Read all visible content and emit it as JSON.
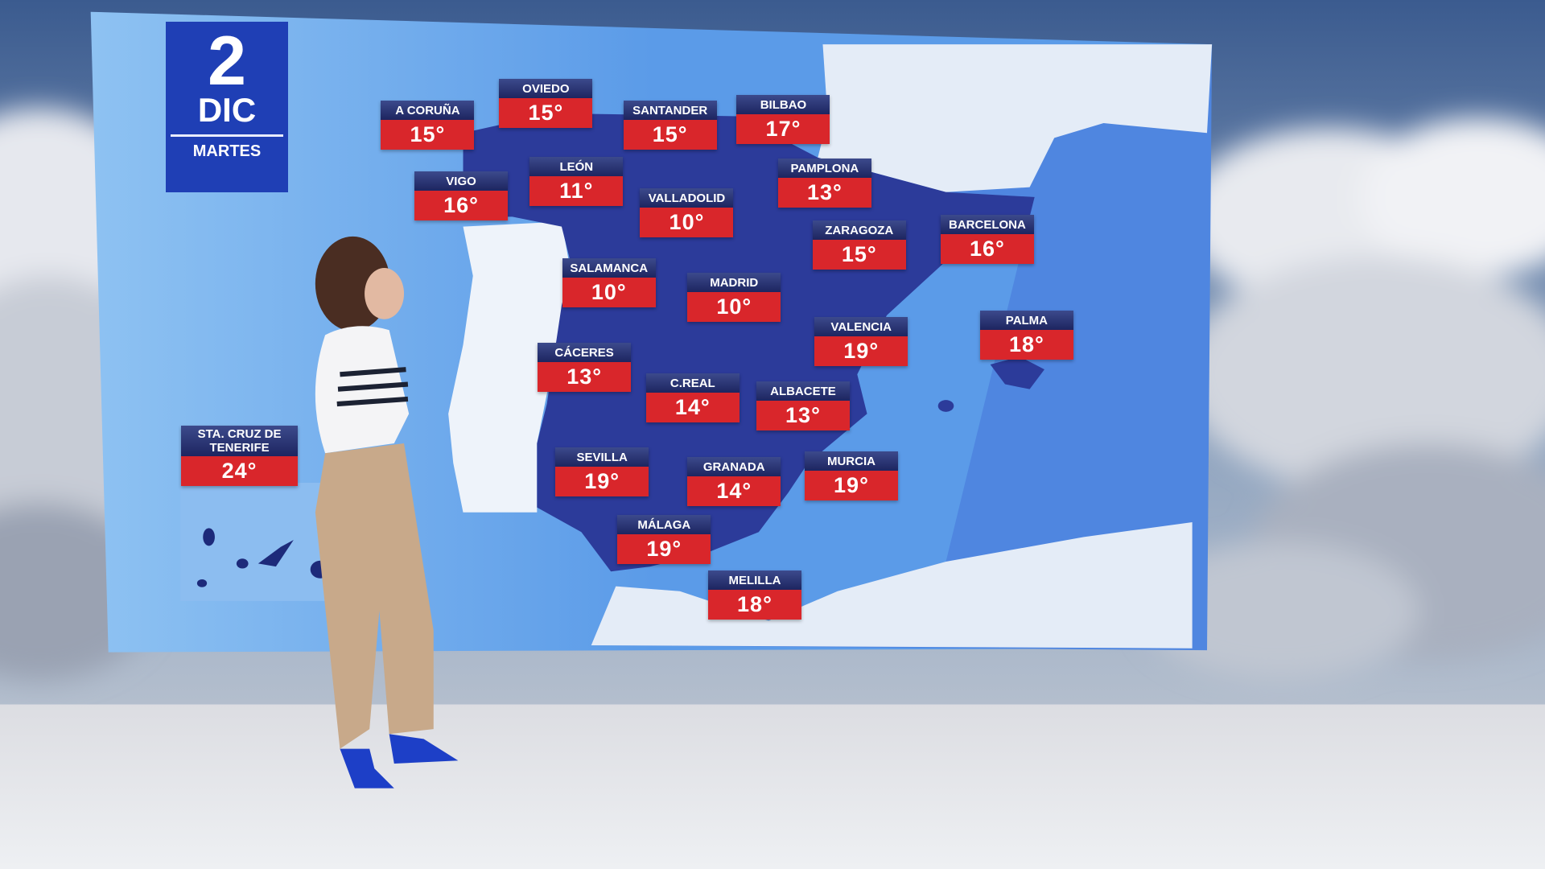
{
  "date": {
    "day": "2",
    "month": "DIC",
    "weekday": "MARTES"
  },
  "cities": [
    {
      "name": "A CORUÑA",
      "temp": "15°"
    },
    {
      "name": "OVIEDO",
      "temp": "15°"
    },
    {
      "name": "SANTANDER",
      "temp": "15°"
    },
    {
      "name": "BILBAO",
      "temp": "17°"
    },
    {
      "name": "VIGO",
      "temp": "16°"
    },
    {
      "name": "LEÓN",
      "temp": "11°"
    },
    {
      "name": "PAMPLONA",
      "temp": "13°"
    },
    {
      "name": "VALLADOLID",
      "temp": "10°"
    },
    {
      "name": "ZARAGOZA",
      "temp": "15°"
    },
    {
      "name": "BARCELONA",
      "temp": "16°"
    },
    {
      "name": "SALAMANCA",
      "temp": "10°"
    },
    {
      "name": "MADRID",
      "temp": "10°"
    },
    {
      "name": "PALMA",
      "temp": "18°"
    },
    {
      "name": "VALENCIA",
      "temp": "19°"
    },
    {
      "name": "CÁCERES",
      "temp": "13°"
    },
    {
      "name": "C.REAL",
      "temp": "14°"
    },
    {
      "name": "ALBACETE",
      "temp": "13°"
    },
    {
      "name": "STA. CRUZ DE TENERIFE",
      "temp": "24°"
    },
    {
      "name": "SEVILLA",
      "temp": "19°"
    },
    {
      "name": "GRANADA",
      "temp": "14°"
    },
    {
      "name": "MURCIA",
      "temp": "19°"
    },
    {
      "name": "MÁLAGA",
      "temp": "19°"
    },
    {
      "name": "MELILLA",
      "temp": "18°"
    }
  ]
}
